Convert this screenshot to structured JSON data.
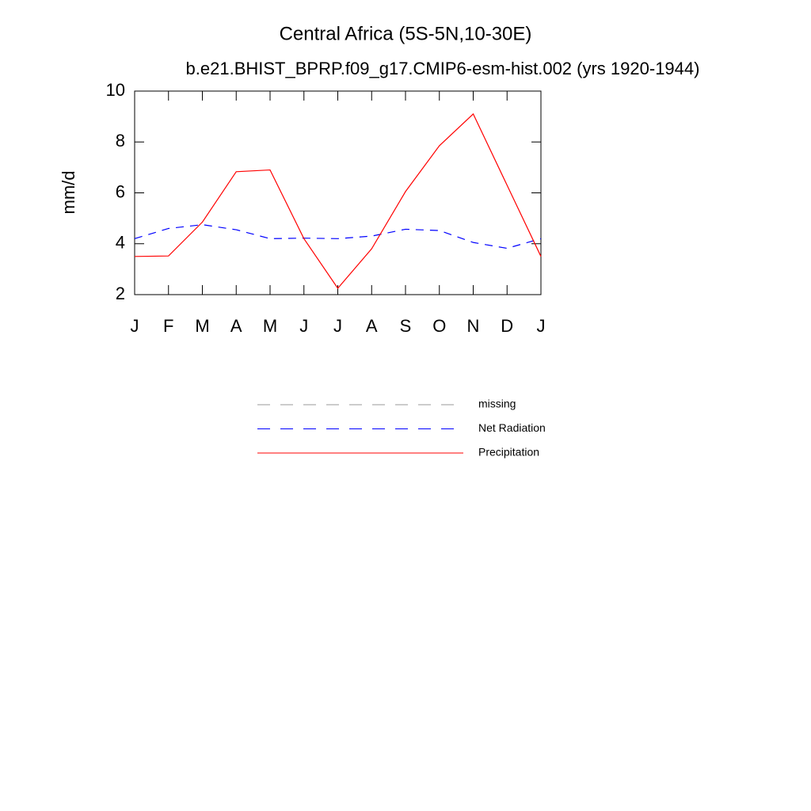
{
  "chart_data": {
    "type": "line",
    "title": "Central Africa (5S-5N,10-30E)",
    "subtitle": "b.e21.BHIST_BPRP.f09_g17.CMIP6-esm-hist.002 (yrs 1920-1944)",
    "y_label": "mm/d",
    "categories": [
      "J",
      "F",
      "M",
      "A",
      "M",
      "J",
      "J",
      "A",
      "S",
      "O",
      "N",
      "D",
      "J"
    ],
    "ylim": [
      2,
      10
    ],
    "yticks": [
      2,
      4,
      6,
      8,
      10
    ],
    "series": [
      {
        "name": "missing",
        "color": "#999999",
        "dashed": true,
        "values": [
          null,
          null,
          null,
          null,
          null,
          null,
          null,
          null,
          null,
          null,
          null,
          null,
          null
        ]
      },
      {
        "name": "Net Radiation",
        "color": "#0000ff",
        "dashed": true,
        "values": [
          4.2,
          4.6,
          4.75,
          4.55,
          4.2,
          4.22,
          4.2,
          4.3,
          4.57,
          4.52,
          4.05,
          3.82,
          4.2
        ]
      },
      {
        "name": "Precipitation",
        "color": "#ff0000",
        "dashed": false,
        "values": [
          3.5,
          3.52,
          4.85,
          6.83,
          6.9,
          4.2,
          2.25,
          3.8,
          6.05,
          7.85,
          9.1,
          6.3,
          3.5
        ]
      }
    ]
  }
}
